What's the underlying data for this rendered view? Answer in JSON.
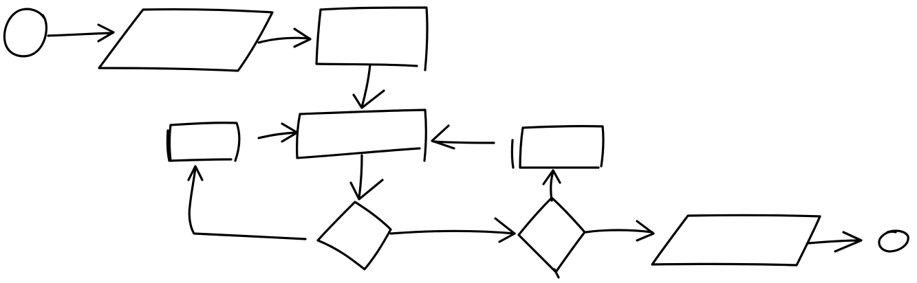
{
  "diagram": {
    "style": "hand-drawn flowchart sketch",
    "ink_color": "#000000",
    "background_color": "#ffffff",
    "nodes": [
      {
        "id": "start",
        "shape": "circle",
        "label": ""
      },
      {
        "id": "input",
        "shape": "parallelogram",
        "label": ""
      },
      {
        "id": "process-1",
        "shape": "rectangle",
        "label": ""
      },
      {
        "id": "process-2",
        "shape": "rectangle",
        "label": ""
      },
      {
        "id": "process-left",
        "shape": "rectangle",
        "label": ""
      },
      {
        "id": "process-right",
        "shape": "rectangle",
        "label": ""
      },
      {
        "id": "decision-1",
        "shape": "diamond",
        "label": ""
      },
      {
        "id": "decision-2",
        "shape": "diamond",
        "label": ""
      },
      {
        "id": "output",
        "shape": "parallelogram",
        "label": ""
      },
      {
        "id": "end",
        "shape": "circle",
        "label": ""
      }
    ],
    "edges": [
      {
        "from": "start",
        "to": "input"
      },
      {
        "from": "input",
        "to": "process-1"
      },
      {
        "from": "process-1",
        "to": "process-2"
      },
      {
        "from": "process-left",
        "to": "process-2"
      },
      {
        "from": "process-right",
        "to": "process-2"
      },
      {
        "from": "process-2",
        "to": "decision-1"
      },
      {
        "from": "decision-1",
        "to": "process-left"
      },
      {
        "from": "decision-1",
        "to": "decision-2"
      },
      {
        "from": "decision-2",
        "to": "process-right"
      },
      {
        "from": "decision-2",
        "to": "output"
      },
      {
        "from": "output",
        "to": "end"
      }
    ]
  }
}
